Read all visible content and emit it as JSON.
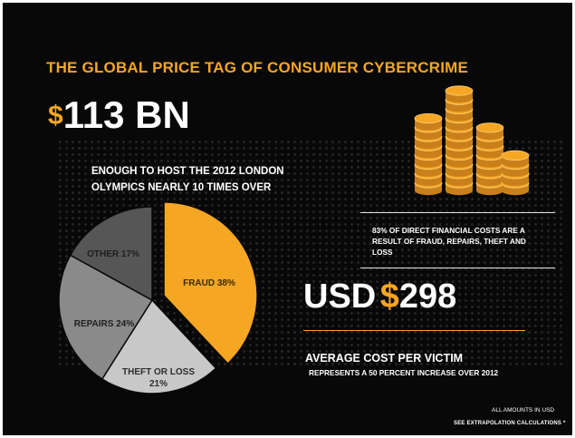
{
  "title": "THE GLOBAL PRICE TAG OF CONSUMER CYBERCRIME",
  "total": {
    "currency_symbol": "$",
    "value": "113 BN"
  },
  "olympics_text": "ENOUGH TO HOST THE 2012 LONDON OLYMPICS NEARLY 10 TIMES OVER",
  "chart_data": {
    "type": "pie",
    "title": "",
    "slices": [
      {
        "label": "FRAUD 38%",
        "value": 38,
        "color": "#f5a623",
        "exploded": true
      },
      {
        "label": "THEFT OR LOSS 21%",
        "value": 21,
        "color": "#c8c8c8",
        "exploded": false
      },
      {
        "label": "REPAIRS 24%",
        "value": 24,
        "color": "#8a8a8a",
        "exploded": false
      },
      {
        "label": "OTHER 17%",
        "value": 17,
        "color": "#565656",
        "exploded": false
      }
    ],
    "start_angle_deg": 0,
    "direction": "clockwise"
  },
  "coin_color": "#f5a623",
  "direct_costs_text": "83% OF DIRECT FINANCIAL COSTS ARE A RESULT OF FRAUD, REPAIRS, THEFT AND LOSS",
  "per_victim": {
    "prefix": "USD",
    "currency_symbol": "$",
    "value": "298"
  },
  "average_label": "AVERAGE COST PER VICTIM",
  "increase_text": "REPRESENTS A 50 PERCENT INCREASE OVER 2012",
  "footnote_amounts": "ALL AMOUNTS IN USD",
  "footnote_extrapolation": "SEE EXTRAPOLATION CALCULATIONS *"
}
